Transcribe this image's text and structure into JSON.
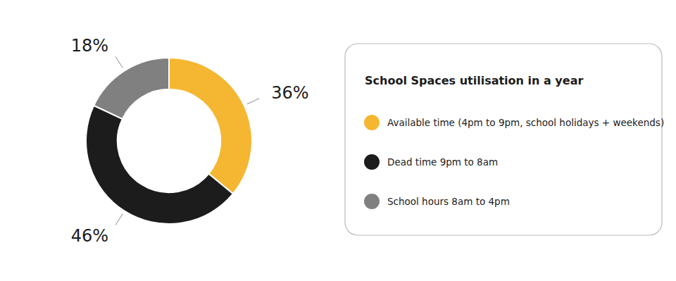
{
  "chart_data": {
    "type": "donut",
    "title": "School Spaces utilisation in a year",
    "categories": [
      "Available time (4pm to 9pm, school holidays + weekends)",
      "Dead time 9pm to 8am",
      "School hours 8am to 4pm"
    ],
    "values": [
      36,
      46,
      18
    ],
    "value_labels": [
      "36%",
      "46%",
      "18%"
    ],
    "colors": [
      "#F5B731",
      "#1C1C1C",
      "#808080"
    ],
    "data_labels": true,
    "legend": "right"
  }
}
